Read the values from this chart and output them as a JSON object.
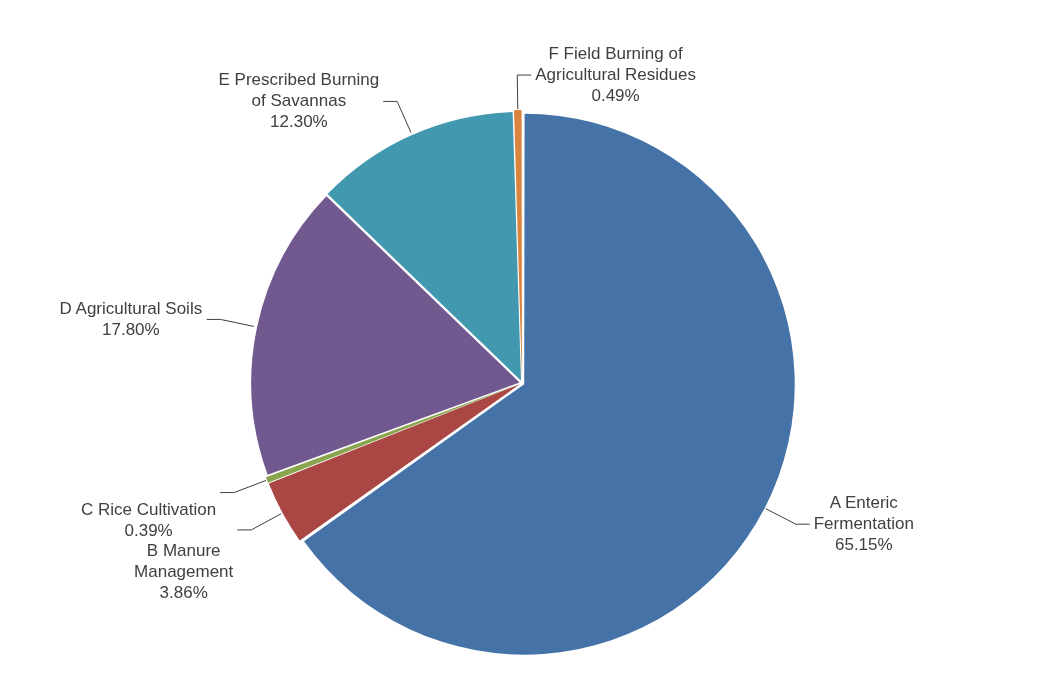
{
  "chart_data": {
    "type": "pie",
    "categories": [
      "A Enteric Fermentation",
      "B Manure Management",
      "C Rice Cultivation",
      "D Agricultural Soils",
      "E Prescribed Burning of Savannas",
      "F Field Burning of Agricultural Residues"
    ],
    "values": [
      65.15,
      3.86,
      0.39,
      17.8,
      12.3,
      0.49
    ],
    "colors": [
      "#4572a7",
      "#aa4643",
      "#89a54e",
      "#71588f",
      "#4198af",
      "#db843d"
    ],
    "value_labels": [
      "65.15%",
      "3.86%",
      "0.39%",
      "17.80%",
      "12.30%",
      "0.49%"
    ]
  }
}
